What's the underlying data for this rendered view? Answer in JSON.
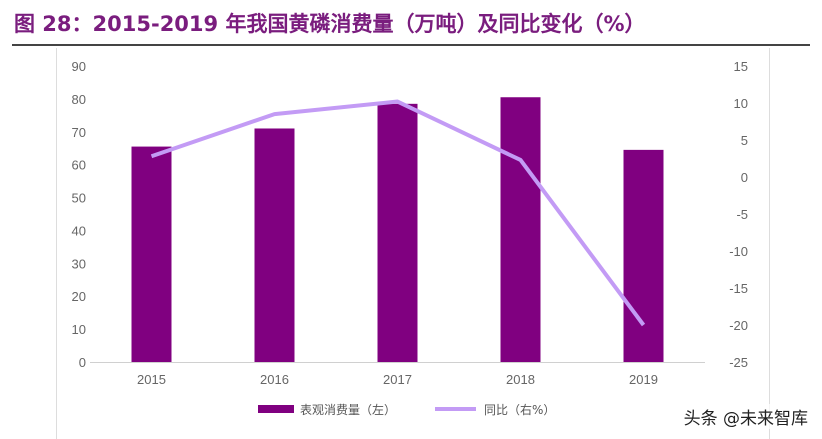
{
  "title": "图 28：2015-2019 年我国黄磷消费量（万吨）及同比变化（%）",
  "watermark": "头条 @未来智库",
  "chart_data": {
    "type": "bar+line",
    "categories": [
      "2015",
      "2016",
      "2017",
      "2018",
      "2019"
    ],
    "series": [
      {
        "name": "表观消费量（左）",
        "type": "bar",
        "axis": "left",
        "color": "#800080",
        "values": [
          65.5,
          71,
          78.5,
          80.5,
          64.5
        ]
      },
      {
        "name": "同比（右%）",
        "type": "line",
        "axis": "right",
        "color": "#c39bf5",
        "values": [
          2.8,
          8.5,
          10.2,
          2.3,
          -20
        ]
      }
    ],
    "left_axis": {
      "ylim": [
        0,
        90
      ],
      "ticks": [
        0,
        10,
        20,
        30,
        40,
        50,
        60,
        70,
        80,
        90
      ]
    },
    "right_axis": {
      "ylim": [
        -25,
        15
      ],
      "ticks": [
        -25,
        -20,
        -15,
        -10,
        -5,
        0,
        5,
        10,
        15
      ]
    },
    "grid": false,
    "legend": "bottom"
  }
}
